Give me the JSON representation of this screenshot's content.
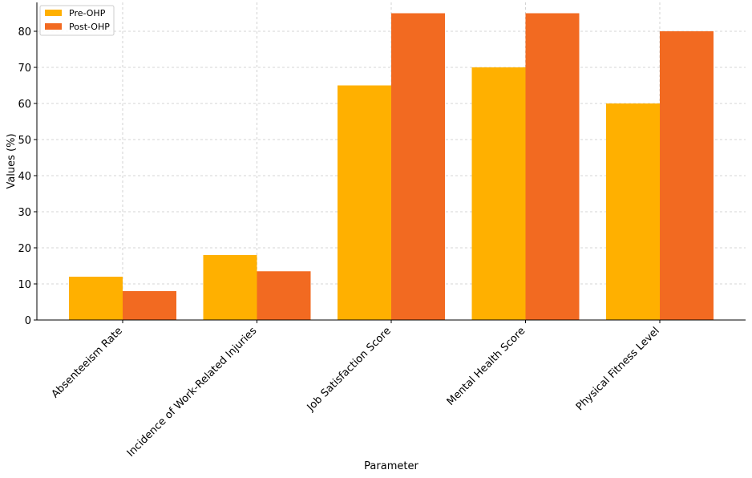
{
  "chart_data": {
    "type": "bar",
    "xlabel": "Parameter",
    "ylabel": "Values (%)",
    "categories": [
      "Absenteeism Rate",
      "Incidence of Work-Related Injuries",
      "Job Satisfaction Score",
      "Mental Health Score",
      "Physical Fitness Level"
    ],
    "series": [
      {
        "name": "Pre-OHP",
        "values": [
          12,
          18,
          65,
          70,
          60
        ],
        "color": "#FFB000"
      },
      {
        "name": "Post-OHP",
        "values": [
          8,
          13.5,
          85,
          85,
          80
        ],
        "color": "#F26A21"
      }
    ],
    "ylim": [
      0,
      88
    ],
    "yticks": [
      0,
      10,
      20,
      30,
      40,
      50,
      60,
      70,
      80
    ],
    "grid": true,
    "legend_position": "top-left"
  }
}
